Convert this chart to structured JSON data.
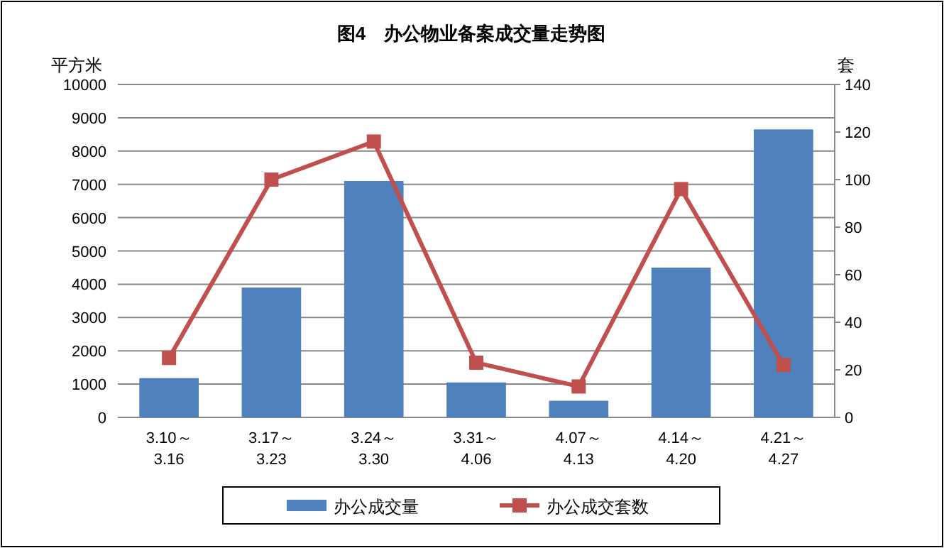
{
  "chart_data": {
    "type": "bar",
    "title": "图4　办公物业备案成交量走势图",
    "ylabel": "平方米",
    "y2label": "套",
    "categories": [
      "3.10～3.16",
      "3.17～3.23",
      "3.24～3.30",
      "3.31～4.06",
      "4.07～4.13",
      "4.14～4.20",
      "4.21～4.27"
    ],
    "series": [
      {
        "name": "办公成交量",
        "color": "#4f81bd",
        "values": [
          1180,
          3900,
          7100,
          1050,
          500,
          4500,
          8650
        ]
      },
      {
        "name": "办公成交套数",
        "type": "line",
        "axis": "y2",
        "color": "#c0504d",
        "marker": "square",
        "values": [
          25,
          100,
          116,
          23,
          13,
          96,
          22
        ]
      }
    ],
    "ylim": [
      0,
      10000
    ],
    "yticks": [
      0,
      1000,
      2000,
      3000,
      4000,
      5000,
      6000,
      7000,
      8000,
      9000,
      10000
    ],
    "y2lim": [
      0,
      140
    ],
    "y2ticks": [
      0,
      20,
      40,
      60,
      80,
      100,
      120,
      140
    ],
    "grid": "y",
    "legend": "bottom"
  }
}
